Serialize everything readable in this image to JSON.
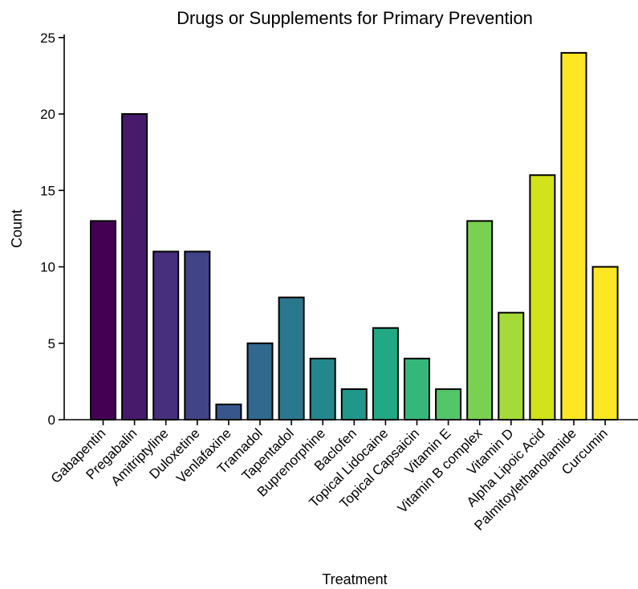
{
  "chart_data": {
    "type": "bar",
    "title": "Drugs or Supplements for Primary Prevention",
    "xlabel": "Treatment",
    "ylabel": "Count",
    "ylim": [
      0,
      25.2
    ],
    "yticks": [
      0,
      5,
      10,
      15,
      20,
      25
    ],
    "grid": false,
    "legend": "none",
    "categories": [
      "Gabapentin",
      "Pregabalin",
      "Amitriptyline",
      "Duloxetine",
      "Venlafaxine",
      "Tramadol",
      "Tapentadol",
      "Buprenorphine",
      "Baclofen",
      "Topical Lidocaine",
      "Topical Capsaicin",
      "Vitamin E",
      "Vitamin B complex",
      "Vitamin D",
      "Alpha Lipoic Acid",
      "Palmitoylethanolamide",
      "Curcumin"
    ],
    "values": [
      13,
      20,
      11,
      11,
      1,
      5,
      8,
      4,
      2,
      6,
      4,
      2,
      13,
      7,
      16,
      24,
      10
    ],
    "colors": [
      "#440154",
      "#481a6c",
      "#472f7d",
      "#414487",
      "#39568c",
      "#31688e",
      "#2a788e",
      "#23888e",
      "#1f988b",
      "#22a884",
      "#35b779",
      "#54c568",
      "#7ad151",
      "#a5db36",
      "#d2e21b",
      "#fde725",
      "#fde725"
    ]
  }
}
